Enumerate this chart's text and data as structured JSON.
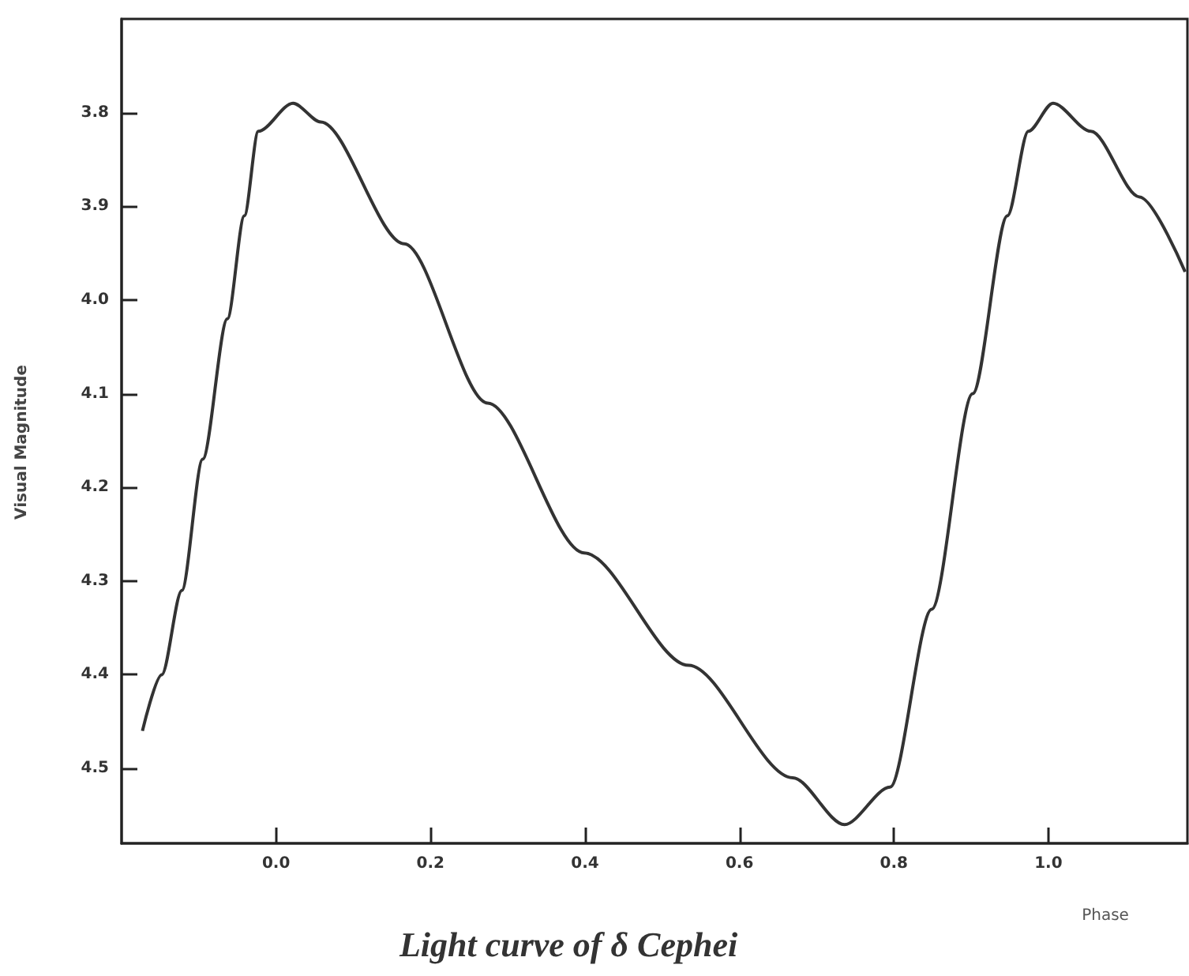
{
  "chart_data": {
    "type": "line",
    "title": "Light curve of δ Cephei",
    "xlabel": "Phase",
    "ylabel": "Visual Magnitude",
    "xlim": [
      -0.2,
      1.18
    ],
    "ylim": [
      4.58,
      3.7
    ],
    "xticks": [
      {
        "value": 0,
        "label": "0.0"
      },
      0.2,
      0.4,
      0.6,
      0.8,
      {
        "value": 1,
        "label": "1.0"
      }
    ],
    "yticks": [
      3.8,
      3.9,
      {
        "value": 4,
        "label": "4.0"
      },
      4.1,
      4.2,
      4.3,
      4.4,
      4.5
    ],
    "x": [
      -0.173,
      -0.148,
      -0.122,
      -0.095,
      -0.063,
      -0.041,
      -0.023,
      0.022,
      0.058,
      0.166,
      0.274,
      0.399,
      0.534,
      0.669,
      0.736,
      0.795,
      0.849,
      0.902,
      0.947,
      0.974,
      1.006,
      1.055,
      1.118,
      1.177
    ],
    "series": [
      {
        "color": "#333333",
        "values": [
          4.46,
          4.4,
          4.31,
          4.17,
          4.02,
          3.91,
          3.82,
          3.79,
          3.81,
          3.94,
          4.11,
          4.27,
          4.39,
          4.51,
          4.56,
          4.52,
          4.33,
          4.1,
          3.91,
          3.82,
          3.79,
          3.82,
          3.89,
          3.97
        ]
      }
    ],
    "grid": false,
    "marker": "none",
    "line_style": "solid"
  }
}
